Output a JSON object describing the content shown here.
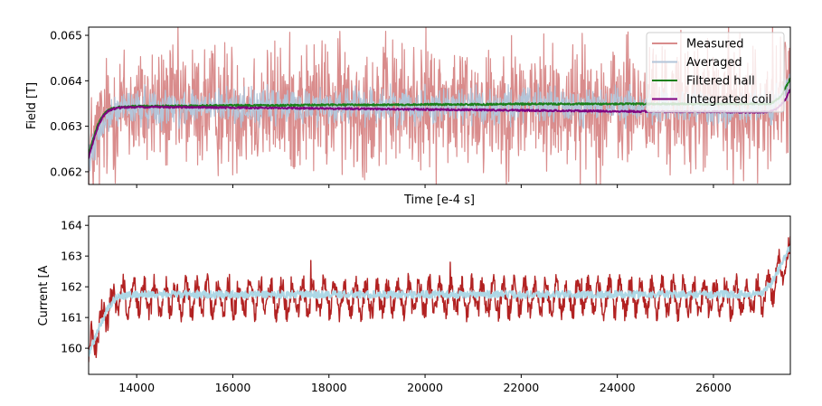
{
  "chart_data": [
    {
      "type": "line",
      "title": "",
      "xlabel": "Time [e-4 s]",
      "ylabel": "Field [T]",
      "xlim": [
        13000,
        27600
      ],
      "ylim": [
        0.06172,
        0.06518
      ],
      "y_ticks": [
        0.062,
        0.063,
        0.064,
        0.065
      ],
      "y_tick_labels": [
        "0.062",
        "0.063",
        "0.064",
        "0.065"
      ],
      "x_ticks": [
        14000,
        16000,
        18000,
        20000,
        22000,
        24000,
        26000
      ],
      "x_tick_labels_visible": false,
      "grid": false,
      "legend_position": "top-right",
      "series": [
        {
          "name": "Measured",
          "color": "#d98c8c",
          "x": [
            13000,
            13300,
            13600,
            14000,
            15000,
            16000,
            17000,
            18000,
            19000,
            20000,
            21000,
            22000,
            23000,
            24000,
            25000,
            26000,
            27000,
            27300,
            27600
          ],
          "center": [
            0.0623,
            0.063,
            0.0634,
            0.06342,
            0.06342,
            0.06343,
            0.06343,
            0.06345,
            0.06345,
            0.06346,
            0.06346,
            0.06346,
            0.06345,
            0.06344,
            0.06343,
            0.06341,
            0.06339,
            0.06345,
            0.064
          ],
          "spread": 0.0021
        },
        {
          "name": "Averaged",
          "color": "#b3c5d9",
          "x": [
            13000,
            13300,
            13600,
            14000,
            15000,
            16000,
            17000,
            18000,
            19000,
            20000,
            21000,
            22000,
            23000,
            24000,
            25000,
            26000,
            27000,
            27300,
            27600
          ],
          "center": [
            0.0623,
            0.063,
            0.0634,
            0.06342,
            0.06342,
            0.06343,
            0.06343,
            0.06345,
            0.06345,
            0.06346,
            0.06346,
            0.06346,
            0.06345,
            0.06344,
            0.06343,
            0.06341,
            0.06339,
            0.06345,
            0.064
          ],
          "spread": 0.0006
        },
        {
          "name": "Filtered hall",
          "color": "#1a7f1a",
          "x": [
            13000,
            13100,
            13200,
            13300,
            13400,
            13500,
            13700,
            14000,
            15000,
            16000,
            17000,
            18000,
            19000,
            20000,
            21000,
            22000,
            23000,
            24000,
            25000,
            26000,
            27000,
            27200,
            27400,
            27500,
            27600
          ],
          "y": [
            0.0624,
            0.06275,
            0.06305,
            0.06325,
            0.06335,
            0.0634,
            0.06343,
            0.06344,
            0.06345,
            0.06346,
            0.06346,
            0.06347,
            0.06347,
            0.06348,
            0.06348,
            0.06349,
            0.06349,
            0.06349,
            0.06349,
            0.06349,
            0.06349,
            0.0635,
            0.06365,
            0.06385,
            0.06405
          ]
        },
        {
          "name": "Integrated coil",
          "color": "#800080",
          "x": [
            13000,
            13100,
            13200,
            13300,
            13400,
            13500,
            13700,
            14000,
            15000,
            16000,
            17000,
            18000,
            19000,
            20000,
            21000,
            22000,
            23000,
            24000,
            25000,
            26000,
            26500,
            27000,
            27200,
            27350,
            27500,
            27600
          ],
          "y": [
            0.0623,
            0.06268,
            0.063,
            0.06322,
            0.06333,
            0.06338,
            0.06341,
            0.06342,
            0.06342,
            0.06341,
            0.0634,
            0.06339,
            0.06338,
            0.06337,
            0.06336,
            0.06335,
            0.06334,
            0.06333,
            0.06332,
            0.06332,
            0.06331,
            0.06331,
            0.06333,
            0.0634,
            0.0636,
            0.06382
          ]
        }
      ]
    },
    {
      "type": "line",
      "title": "",
      "xlabel": "",
      "ylabel": "Current [A",
      "xlim": [
        13000,
        27600
      ],
      "ylim": [
        159.15,
        164.3
      ],
      "y_ticks": [
        160,
        161,
        162,
        163,
        164
      ],
      "y_tick_labels": [
        "160",
        "161",
        "162",
        "163",
        "164"
      ],
      "x_ticks": [
        14000,
        16000,
        18000,
        20000,
        22000,
        24000,
        26000
      ],
      "x_tick_labels": [
        "14000",
        "16000",
        "18000",
        "20000",
        "22000",
        "24000",
        "26000"
      ],
      "grid": false,
      "series": [
        {
          "name": "",
          "color": "#b22222",
          "x": [
            13000,
            13200,
            13400,
            13600,
            14000,
            16000,
            18000,
            20000,
            22000,
            24000,
            26000,
            26800,
            27000,
            27200,
            27400,
            27600
          ],
          "center": [
            159.9,
            160.6,
            161.3,
            161.6,
            161.65,
            161.65,
            161.65,
            161.65,
            161.65,
            161.65,
            161.65,
            161.65,
            161.7,
            162.0,
            162.6,
            163.0
          ],
          "oscillation_period": 220,
          "oscillation_low": 160.8,
          "oscillation_high": 162.4
        },
        {
          "name": "",
          "color": "#add8e6",
          "x": [
            13000,
            13200,
            13400,
            13600,
            14000,
            16000,
            18000,
            20000,
            22000,
            24000,
            26000,
            26800,
            27000,
            27200,
            27400,
            27600
          ],
          "y": [
            159.8,
            160.6,
            161.3,
            161.7,
            161.75,
            161.75,
            161.75,
            161.75,
            161.75,
            161.75,
            161.75,
            161.75,
            161.8,
            162.1,
            162.7,
            163.3
          ]
        }
      ]
    }
  ]
}
